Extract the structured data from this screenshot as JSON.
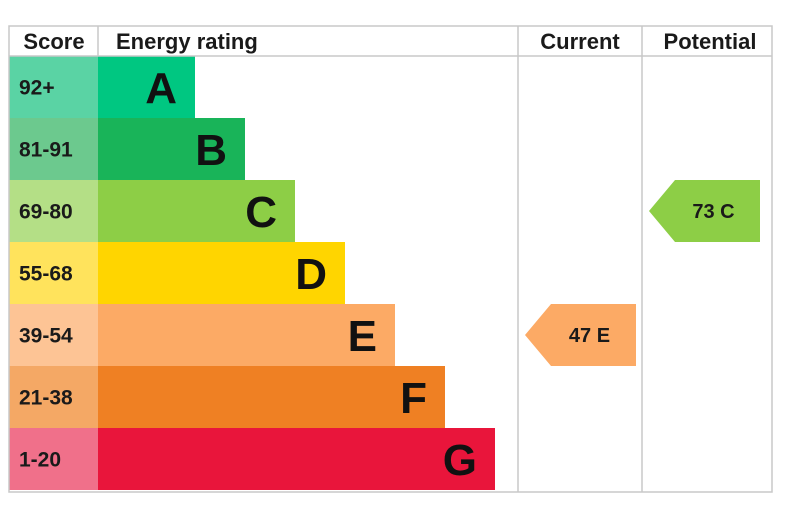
{
  "chart_data": {
    "type": "bar",
    "headers": {
      "score": "Score",
      "rating": "Energy rating",
      "current": "Current",
      "potential": "Potential"
    },
    "bands": [
      {
        "letter": "A",
        "range": "92+",
        "color": "#00c781",
        "score_color": "#5ad3a4"
      },
      {
        "letter": "B",
        "range": "81-91",
        "color": "#19b459",
        "score_color": "#6cc98e"
      },
      {
        "letter": "C",
        "range": "69-80",
        "color": "#8dce46",
        "score_color": "#b4df86"
      },
      {
        "letter": "D",
        "range": "55-68",
        "color": "#ffd500",
        "score_color": "#ffe35c"
      },
      {
        "letter": "E",
        "range": "39-54",
        "color": "#fcaa65",
        "score_color": "#fdc495"
      },
      {
        "letter": "F",
        "range": "21-38",
        "color": "#ef8023",
        "score_color": "#f4a865"
      },
      {
        "letter": "G",
        "range": "1-20",
        "color": "#e9153b",
        "score_color": "#f0708a"
      }
    ],
    "current": {
      "value": 47,
      "band": "E",
      "label": "47 E",
      "color": "#fcaa65"
    },
    "potential": {
      "value": 73,
      "band": "C",
      "label": "73 C",
      "color": "#8dce46"
    }
  }
}
